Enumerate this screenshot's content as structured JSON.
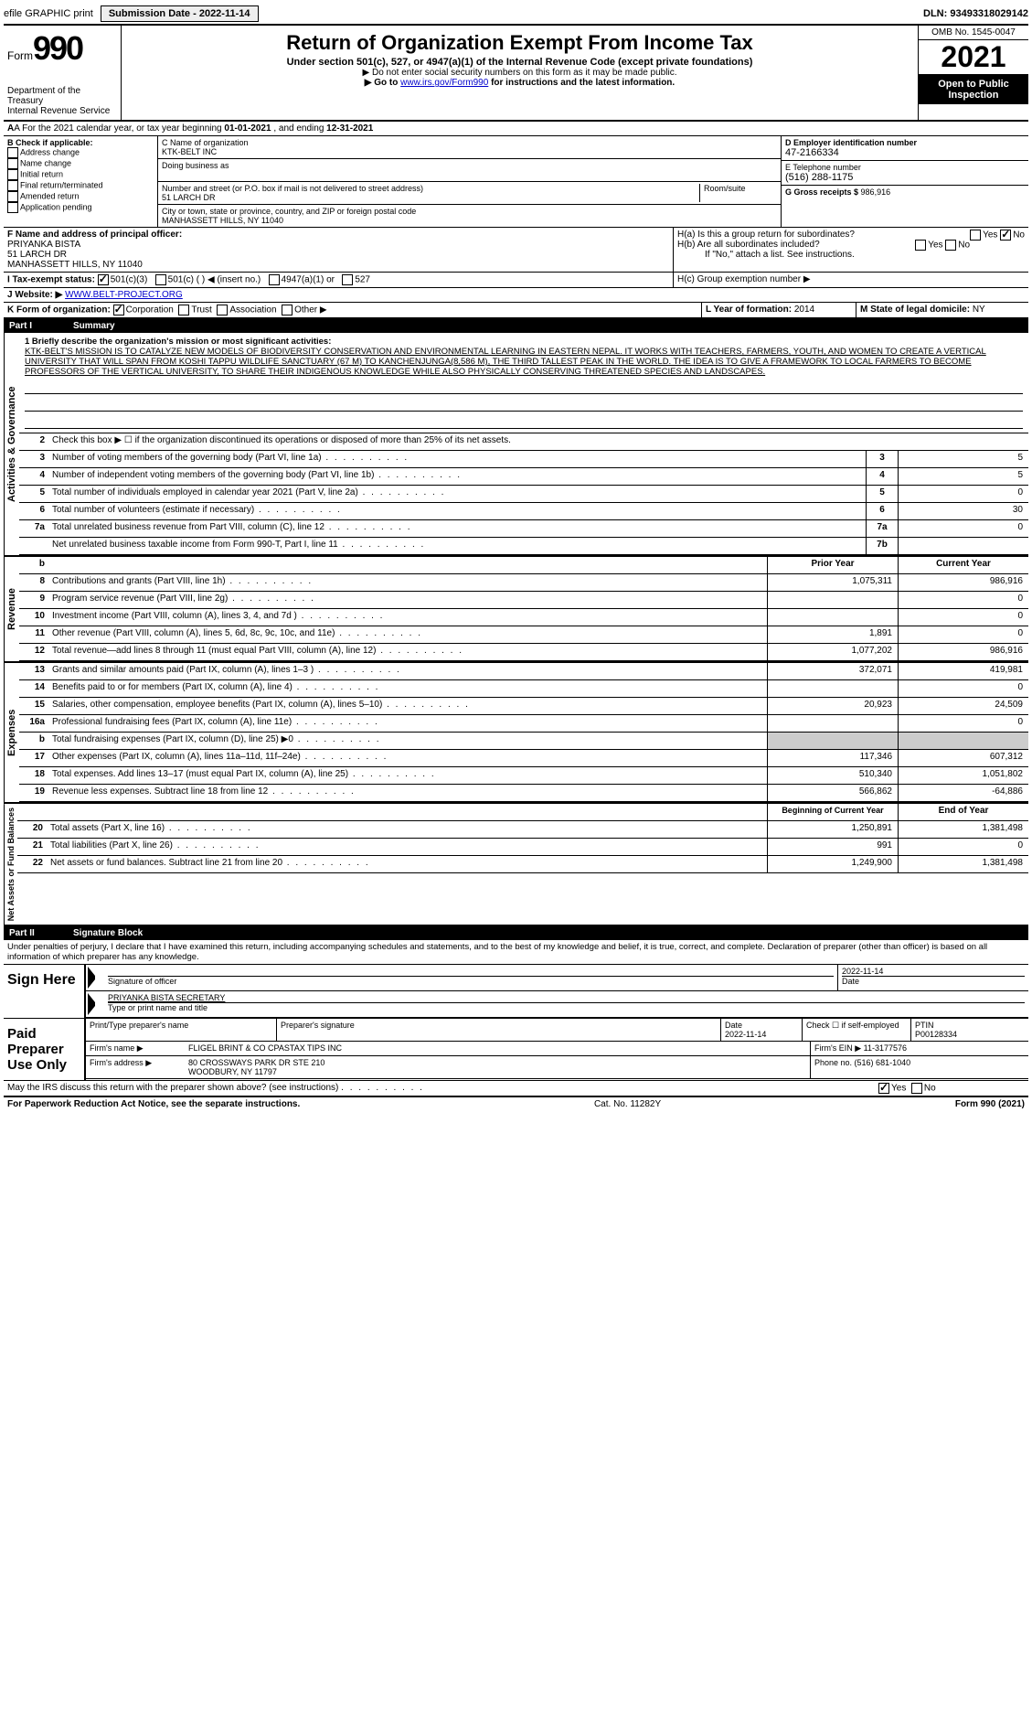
{
  "topbar": {
    "efile": "efile GRAPHIC print",
    "submission_label": "Submission Date - 2022-11-14",
    "dln": "DLN: 93493318029142"
  },
  "header": {
    "form_label": "Form",
    "form_number": "990",
    "dept": "Department of the Treasury",
    "irs": "Internal Revenue Service",
    "title": "Return of Organization Exempt From Income Tax",
    "sub1": "Under section 501(c), 527, or 4947(a)(1) of the Internal Revenue Code (except private foundations)",
    "sub2": "▶ Do not enter social security numbers on this form as it may be made public.",
    "sub3_prefix": "▶ Go to ",
    "sub3_link": "www.irs.gov/Form990",
    "sub3_suffix": " for instructions and the latest information.",
    "omb": "OMB No. 1545-0047",
    "year": "2021",
    "inspection": "Open to Public Inspection"
  },
  "row_a": {
    "label": "A For the 2021 calendar year, or tax year beginning ",
    "begin": "01-01-2021",
    "mid": " , and ending ",
    "end": "12-31-2021"
  },
  "b": {
    "label": "B Check if applicable:",
    "opts": [
      "Address change",
      "Name change",
      "Initial return",
      "Final return/terminated",
      "Amended return",
      "Application pending"
    ]
  },
  "c": {
    "name_label": "C Name of organization",
    "name": "KTK-BELT INC",
    "dba_label": "Doing business as",
    "addr_label": "Number and street (or P.O. box if mail is not delivered to street address)",
    "addr": "51 LARCH DR",
    "room_label": "Room/suite",
    "city_label": "City or town, state or province, country, and ZIP or foreign postal code",
    "city": "MANHASSETT HILLS, NY  11040"
  },
  "d": {
    "label": "D Employer identification number",
    "val": "47-2166334"
  },
  "e": {
    "label": "E Telephone number",
    "val": "(516) 288-1175"
  },
  "g": {
    "label": "G Gross receipts $ ",
    "val": "986,916"
  },
  "f": {
    "label": "F Name and address of principal officer:",
    "name": "PRIYANKA BISTA",
    "addr1": "51 LARCH DR",
    "addr2": "MANHASSETT HILLS, NY  11040"
  },
  "h": {
    "a": "H(a)  Is this a group return for subordinates?",
    "b": "H(b)  Are all subordinates included?",
    "b_note": "If \"No,\" attach a list. See instructions.",
    "c": "H(c)  Group exemption number ▶",
    "yes": "Yes",
    "no": "No"
  },
  "i": {
    "label": "I  Tax-exempt status:",
    "o1": "501(c)(3)",
    "o2": "501(c) (   ) ◀ (insert no.)",
    "o3": "4947(a)(1) or",
    "o4": "527"
  },
  "j": {
    "label": "J  Website: ▶ ",
    "val": "WWW.BELT-PROJECT.ORG"
  },
  "k": {
    "label": "K Form of organization:",
    "o1": "Corporation",
    "o2": "Trust",
    "o3": "Association",
    "o4": "Other ▶"
  },
  "l": {
    "label": "L Year of formation: ",
    "val": "2014"
  },
  "m": {
    "label": "M State of legal domicile: ",
    "val": "NY"
  },
  "part1": {
    "label": "Part I",
    "title": "Summary"
  },
  "mission": {
    "q": "1  Briefly describe the organization's mission or most significant activities:",
    "text": "KTK-BELT'S MISSION IS TO CATALYZE NEW MODELS OF BIODIVERSITY CONSERVATION AND ENVIRONMENTAL LEARNING IN EASTERN NEPAL. IT WORKS WITH TEACHERS, FARMERS, YOUTH, AND WOMEN TO CREATE A VERTICAL UNIVERSITY THAT WILL SPAN FROM KOSHI TAPPU WILDLIFE SANCTUARY (67 M) TO KANCHENJUNGA(8,586 M), THE THIRD TALLEST PEAK IN THE WORLD. THE IDEA IS TO GIVE A FRAMEWORK TO LOCAL FARMERS TO BECOME PROFESSORS OF THE VERTICAL UNIVERSITY, TO SHARE THEIR INDIGENOUS KNOWLEDGE WHILE ALSO PHYSICALLY CONSERVING THREATENED SPECIES AND LANDSCAPES."
  },
  "l2": "Check this box ▶ ☐ if the organization discontinued its operations or disposed of more than 25% of its net assets.",
  "gov_lines": [
    {
      "n": "3",
      "d": "Number of voting members of the governing body (Part VI, line 1a)",
      "b": "3",
      "v": "5"
    },
    {
      "n": "4",
      "d": "Number of independent voting members of the governing body (Part VI, line 1b)",
      "b": "4",
      "v": "5"
    },
    {
      "n": "5",
      "d": "Total number of individuals employed in calendar year 2021 (Part V, line 2a)",
      "b": "5",
      "v": "0"
    },
    {
      "n": "6",
      "d": "Total number of volunteers (estimate if necessary)",
      "b": "6",
      "v": "30"
    },
    {
      "n": "7a",
      "d": "Total unrelated business revenue from Part VIII, column (C), line 12",
      "b": "7a",
      "v": "0"
    },
    {
      "n": "",
      "d": "Net unrelated business taxable income from Form 990-T, Part I, line 11",
      "b": "7b",
      "v": ""
    }
  ],
  "col_hdr": {
    "b": "b",
    "prior": "Prior Year",
    "current": "Current Year"
  },
  "rev_lines": [
    {
      "n": "8",
      "d": "Contributions and grants (Part VIII, line 1h)",
      "p": "1,075,311",
      "c": "986,916"
    },
    {
      "n": "9",
      "d": "Program service revenue (Part VIII, line 2g)",
      "p": "",
      "c": "0"
    },
    {
      "n": "10",
      "d": "Investment income (Part VIII, column (A), lines 3, 4, and 7d )",
      "p": "",
      "c": "0"
    },
    {
      "n": "11",
      "d": "Other revenue (Part VIII, column (A), lines 5, 6d, 8c, 9c, 10c, and 11e)",
      "p": "1,891",
      "c": "0"
    },
    {
      "n": "12",
      "d": "Total revenue—add lines 8 through 11 (must equal Part VIII, column (A), line 12)",
      "p": "1,077,202",
      "c": "986,916"
    }
  ],
  "exp_lines": [
    {
      "n": "13",
      "d": "Grants and similar amounts paid (Part IX, column (A), lines 1–3 )",
      "p": "372,071",
      "c": "419,981"
    },
    {
      "n": "14",
      "d": "Benefits paid to or for members (Part IX, column (A), line 4)",
      "p": "",
      "c": "0"
    },
    {
      "n": "15",
      "d": "Salaries, other compensation, employee benefits (Part IX, column (A), lines 5–10)",
      "p": "20,923",
      "c": "24,509"
    },
    {
      "n": "16a",
      "d": "Professional fundraising fees (Part IX, column (A), line 11e)",
      "p": "",
      "c": "0"
    },
    {
      "n": "b",
      "d": "Total fundraising expenses (Part IX, column (D), line 25) ▶0",
      "p": "shaded",
      "c": "shaded"
    },
    {
      "n": "17",
      "d": "Other expenses (Part IX, column (A), lines 11a–11d, 11f–24e)",
      "p": "117,346",
      "c": "607,312"
    },
    {
      "n": "18",
      "d": "Total expenses. Add lines 13–17 (must equal Part IX, column (A), line 25)",
      "p": "510,340",
      "c": "1,051,802"
    },
    {
      "n": "19",
      "d": "Revenue less expenses. Subtract line 18 from line 12",
      "p": "566,862",
      "c": "-64,886"
    }
  ],
  "na_hdr": {
    "prior": "Beginning of Current Year",
    "current": "End of Year"
  },
  "na_lines": [
    {
      "n": "20",
      "d": "Total assets (Part X, line 16)",
      "p": "1,250,891",
      "c": "1,381,498"
    },
    {
      "n": "21",
      "d": "Total liabilities (Part X, line 26)",
      "p": "991",
      "c": "0"
    },
    {
      "n": "22",
      "d": "Net assets or fund balances. Subtract line 21 from line 20",
      "p": "1,249,900",
      "c": "1,381,498"
    }
  ],
  "part2": {
    "label": "Part II",
    "title": "Signature Block"
  },
  "penalty": "Under penalties of perjury, I declare that I have examined this return, including accompanying schedules and statements, and to the best of my knowledge and belief, it is true, correct, and complete. Declaration of preparer (other than officer) is based on all information of which preparer has any knowledge.",
  "sign": {
    "label": "Sign Here",
    "sig_label": "Signature of officer",
    "date_label": "Date",
    "date": "2022-11-14",
    "name_label": "Type or print name and title",
    "name": "PRIYANKA BISTA  SECRETARY"
  },
  "paid": {
    "label": "Paid Preparer Use Only",
    "h1": "Print/Type preparer's name",
    "h2": "Preparer's signature",
    "h3": "Date",
    "date": "2022-11-14",
    "h4_a": "Check ☐ if self-employed",
    "h5": "PTIN",
    "ptin": "P00128334",
    "firm_label": "Firm's name    ▶",
    "firm": "FLIGEL BRINT & CO CPASTAX TIPS INC",
    "ein_label": "Firm's EIN ▶",
    "ein": "11-3177576",
    "addr_label": "Firm's address ▶",
    "addr1": "80 CROSSWAYS PARK DR STE 210",
    "addr2": "WOODBURY, NY  11797",
    "phone_label": "Phone no. ",
    "phone": "(516) 681-1040"
  },
  "discuss": {
    "q": "May the IRS discuss this return with the preparer shown above? (see instructions)",
    "yes": "Yes",
    "no": "No"
  },
  "footer": {
    "left": "For Paperwork Reduction Act Notice, see the separate instructions.",
    "mid": "Cat. No. 11282Y",
    "right": "Form 990 (2021)"
  },
  "tabs": {
    "gov": "Activities & Governance",
    "rev": "Revenue",
    "exp": "Expenses",
    "na": "Net Assets or Fund Balances"
  }
}
